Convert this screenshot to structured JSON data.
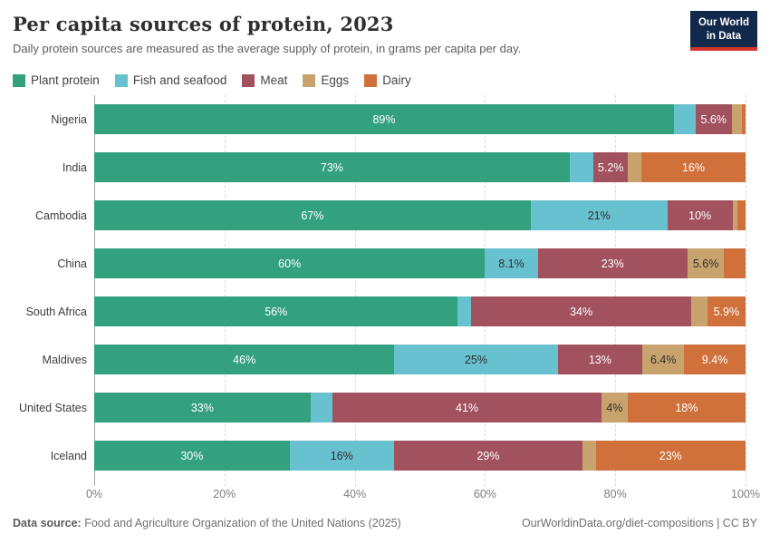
{
  "header": {
    "title": "Per capita sources of protein, 2023",
    "subtitle": "Daily protein sources are measured as the average supply of protein, in grams per capita per day.",
    "logo": {
      "line1": "Our World",
      "line2": "in Data",
      "bg_color": "#12294b",
      "accent_color": "#d2352b"
    }
  },
  "legend": [
    {
      "label": "Plant protein",
      "color": "#33a17e"
    },
    {
      "label": "Fish and seafood",
      "color": "#68c1ce"
    },
    {
      "label": "Meat",
      "color": "#a2525e"
    },
    {
      "label": "Eggs",
      "color": "#c9a36e"
    },
    {
      "label": "Dairy",
      "color": "#d0713c"
    }
  ],
  "chart_data": {
    "type": "bar",
    "orientation": "horizontal",
    "stacked": true,
    "title": "Per capita sources of protein, 2023",
    "unit": "%",
    "xlim": [
      0,
      100
    ],
    "x_ticks": [
      "0%",
      "20%",
      "40%",
      "60%",
      "80%",
      "100%"
    ],
    "grid": "vertical-dashed",
    "legend_position": "top",
    "categories": [
      "Nigeria",
      "India",
      "Cambodia",
      "China",
      "South Africa",
      "Maldives",
      "United States",
      "Iceland"
    ],
    "series": [
      {
        "name": "Plant protein",
        "color": "#33a17e",
        "label_color": "#ffffff",
        "values": [
          89,
          73,
          67,
          60,
          56,
          46,
          33,
          30
        ],
        "labels": [
          "89%",
          "73%",
          "67%",
          "60%",
          "56%",
          "46%",
          "33%",
          "30%"
        ]
      },
      {
        "name": "Fish and seafood",
        "color": "#68c1ce",
        "label_color": "#2f2f2f",
        "values": [
          3.3,
          3.7,
          21,
          8.1,
          2,
          25,
          3.4,
          16
        ],
        "labels": [
          "",
          "",
          "21%",
          "8.1%",
          "",
          "25%",
          "",
          "16%"
        ]
      },
      {
        "name": "Meat",
        "color": "#a2525e",
        "label_color": "#ffffff",
        "values": [
          5.6,
          5.2,
          10,
          23,
          34,
          13,
          41,
          29
        ],
        "labels": [
          "5.6%",
          "5.2%",
          "10%",
          "23%",
          "34%",
          "13%",
          "41%",
          "29%"
        ]
      },
      {
        "name": "Eggs",
        "color": "#c9a36e",
        "label_color": "#2f2f2f",
        "values": [
          1.5,
          2.1,
          0.8,
          5.6,
          2.4,
          6.4,
          4,
          2
        ],
        "labels": [
          "",
          "",
          "",
          "5.6%",
          "",
          "6.4%",
          "4%",
          ""
        ]
      },
      {
        "name": "Dairy",
        "color": "#d0713c",
        "label_color": "#ffffff",
        "values": [
          0.6,
          16,
          1.2,
          3.3,
          5.9,
          9.4,
          18,
          23
        ],
        "labels": [
          "",
          "16%",
          "",
          "",
          "5.9%",
          "9.4%",
          "18%",
          "23%"
        ]
      }
    ]
  },
  "footer": {
    "source_label": "Data source:",
    "source_text": " Food and Agriculture Organization of the United Nations (2025)",
    "right_text": "OurWorldinData.org/diet-compositions | CC BY"
  }
}
